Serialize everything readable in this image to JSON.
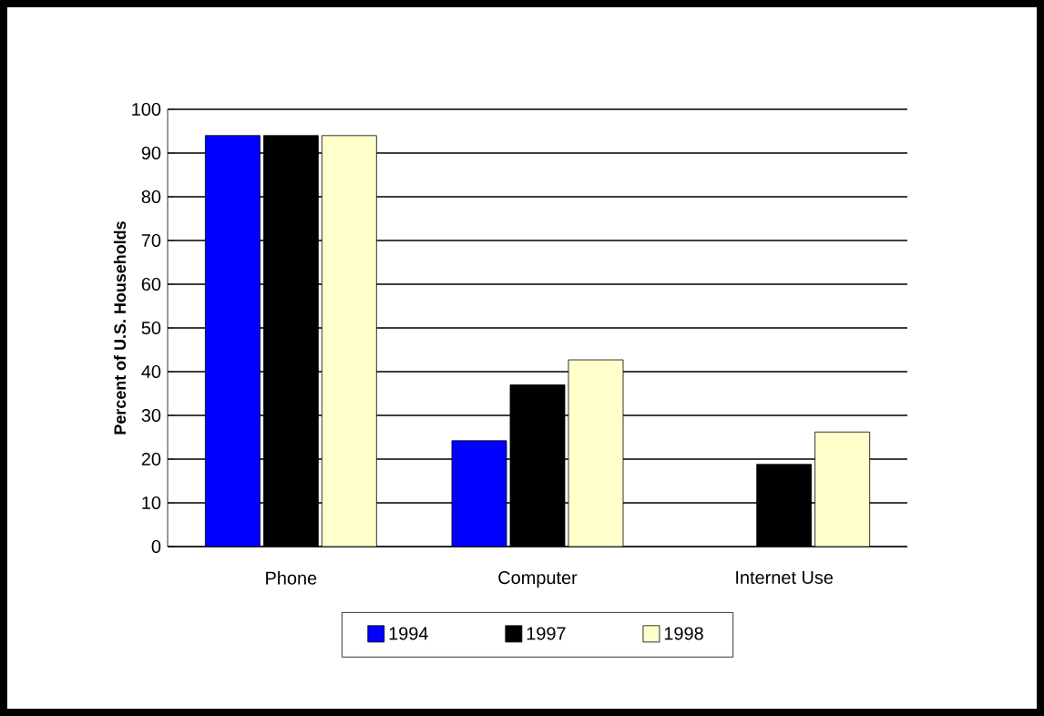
{
  "chart_data": {
    "type": "bar",
    "ylabel": "Percent of U.S. Households",
    "categories": [
      "Phone",
      "Computer",
      "Internet Use"
    ],
    "series": [
      {
        "name": "1994",
        "color": "#0000ff",
        "values": [
          94.0,
          24.2,
          null
        ]
      },
      {
        "name": "1997",
        "color": "#000000",
        "values": [
          94.0,
          37.0,
          18.8
        ]
      },
      {
        "name": "1998",
        "color": "#ffffcc",
        "values": [
          94.0,
          42.7,
          26.2
        ]
      }
    ],
    "ylim": [
      0,
      100
    ],
    "yticks": [
      0,
      10,
      20,
      30,
      40,
      50,
      60,
      70,
      80,
      90,
      100
    ],
    "grid": "y",
    "legend": "bottom"
  }
}
